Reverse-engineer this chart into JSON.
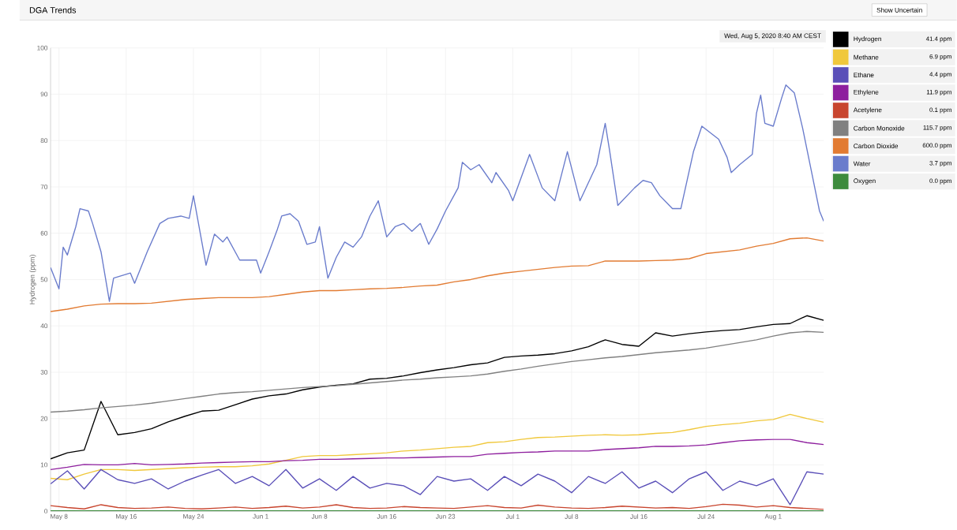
{
  "chart_data": {
    "type": "line",
    "title": "DGA Trends",
    "ylabel": "Hydrogen (ppm)",
    "x": [
      "2020-05-07",
      "2020-05-09",
      "2020-05-11",
      "2020-05-13",
      "2020-05-15",
      "2020-05-17",
      "2020-05-19",
      "2020-05-21",
      "2020-05-23",
      "2020-05-25",
      "2020-05-27",
      "2020-05-29",
      "2020-05-31",
      "2020-06-02",
      "2020-06-04",
      "2020-06-06",
      "2020-06-08",
      "2020-06-10",
      "2020-06-12",
      "2020-06-14",
      "2020-06-16",
      "2020-06-18",
      "2020-06-20",
      "2020-06-22",
      "2020-06-24",
      "2020-06-26",
      "2020-06-28",
      "2020-06-30",
      "2020-07-02",
      "2020-07-04",
      "2020-07-06",
      "2020-07-08",
      "2020-07-10",
      "2020-07-12",
      "2020-07-14",
      "2020-07-16",
      "2020-07-18",
      "2020-07-20",
      "2020-07-22",
      "2020-07-24",
      "2020-07-26",
      "2020-07-28",
      "2020-07-30",
      "2020-08-01",
      "2020-08-03",
      "2020-08-05",
      "2020-08-07"
    ],
    "xlim": [
      "2020-05-07",
      "2020-08-07"
    ],
    "xticks": [
      {
        "value": "2020-05-08",
        "label": "May 8"
      },
      {
        "value": "2020-05-16",
        "label": "May 16"
      },
      {
        "value": "2020-05-24",
        "label": "May 24"
      },
      {
        "value": "2020-06-01",
        "label": "Jun 1"
      },
      {
        "value": "2020-06-08",
        "label": "Jun 8"
      },
      {
        "value": "2020-06-16",
        "label": "Jun 16"
      },
      {
        "value": "2020-06-23",
        "label": "Jun 23"
      },
      {
        "value": "2020-07-01",
        "label": "Jul 1"
      },
      {
        "value": "2020-07-08",
        "label": "Jul 8"
      },
      {
        "value": "2020-07-16",
        "label": "Jul 16"
      },
      {
        "value": "2020-07-24",
        "label": "Jul 24"
      },
      {
        "value": "2020-08-01",
        "label": "Aug 1"
      }
    ],
    "ylim": [
      0,
      100
    ],
    "yticks": [
      0,
      10,
      20,
      30,
      40,
      50,
      60,
      70,
      80,
      90,
      100
    ],
    "grid": true,
    "legend": "top right",
    "marker": "none",
    "line_style": "solid",
    "annotations": [
      "Wed, Aug 5, 2020 8:40 AM CEST",
      "Show Uncertain",
      "41.4 ppm",
      "6.9 ppm",
      "4.4 ppm",
      "11.9 ppm",
      "0.1 ppm",
      "115.7 ppm",
      "600.0 ppm",
      "3.7 ppm",
      "0.0 ppm"
    ],
    "series": [
      {
        "name": "Hydrogen",
        "color": "#000000",
        "values": [
          11.3,
          12.6,
          13.2,
          23.7,
          16.5,
          17,
          17.8,
          19.3,
          20.5,
          21.6,
          21.8,
          23,
          24.2,
          24.9,
          25.3,
          26.2,
          26.8,
          27.2,
          27.5,
          28.5,
          28.7,
          29.2,
          29.9,
          30.5,
          31,
          31.6,
          32,
          33.2,
          33.5,
          33.7,
          34,
          34.6,
          35.5,
          37,
          36,
          35.6,
          38.5,
          37.8,
          38.3,
          38.7,
          39,
          39.2,
          39.8,
          40.3,
          40.5,
          42.2,
          41.2
        ]
      },
      {
        "name": "Methane",
        "color": "#f0c83c",
        "values": [
          7.1,
          6.8,
          8,
          9,
          9,
          8.8,
          9,
          9.2,
          9.4,
          9.5,
          9.6,
          9.6,
          9.8,
          10.2,
          11,
          11.8,
          12,
          12,
          12.2,
          12.4,
          12.6,
          13,
          13.2,
          13.5,
          13.8,
          14,
          14.8,
          15,
          15.5,
          15.9,
          16,
          16.2,
          16.4,
          16.5,
          16.4,
          16.5,
          16.8,
          17,
          17.6,
          18.3,
          18.7,
          19,
          19.5,
          19.8,
          20.9,
          20,
          19.2
        ]
      },
      {
        "name": "Ethane",
        "color": "#5a4fb8",
        "values": [
          5.9,
          8.7,
          4.8,
          9,
          6.8,
          6,
          7,
          4.8,
          6.5,
          7.8,
          9,
          6,
          7.5,
          5.5,
          9,
          5,
          7,
          4.5,
          7.5,
          5,
          6,
          5.5,
          3.6,
          7.5,
          6.5,
          7,
          4.5,
          7.5,
          5.5,
          8,
          6.5,
          4,
          7.5,
          6,
          8.5,
          5,
          6.5,
          4,
          7,
          8.5,
          4.5,
          6.5,
          5.5,
          7,
          1.4,
          8.5,
          8
        ]
      },
      {
        "name": "Ethylene",
        "color": "#8e1f9e",
        "values": [
          9,
          9.5,
          10.1,
          10,
          10,
          10.3,
          10,
          10.1,
          10.2,
          10.4,
          10.5,
          10.6,
          10.7,
          10.7,
          10.9,
          11,
          11.2,
          11.2,
          11.3,
          11.4,
          11.5,
          11.5,
          11.6,
          11.7,
          11.8,
          11.8,
          12.3,
          12.5,
          12.7,
          12.8,
          13,
          13,
          13,
          13.3,
          13.5,
          13.7,
          14,
          14,
          14.1,
          14.3,
          14.8,
          15.2,
          15.4,
          15.5,
          15.5,
          14.8,
          14.4
        ]
      },
      {
        "name": "Acetylene",
        "color": "#c8452e",
        "values": [
          1.2,
          0.8,
          0.5,
          1.4,
          0.8,
          0.6,
          0.7,
          0.9,
          0.6,
          0.5,
          0.7,
          0.9,
          0.6,
          0.8,
          1.1,
          0.7,
          0.9,
          1.4,
          0.8,
          0.6,
          0.7,
          1.0,
          0.8,
          0.7,
          0.6,
          0.9,
          1.2,
          0.8,
          0.7,
          1.3,
          0.9,
          0.7,
          0.6,
          0.8,
          1.1,
          0.9,
          0.7,
          0.8,
          0.6,
          1.0,
          1.5,
          1.3,
          0.9,
          1.2,
          0.8,
          0.6,
          0.4
        ]
      },
      {
        "name": "Carbon Monoxide",
        "color": "#808080",
        "values": [
          21.4,
          21.6,
          21.9,
          22.3,
          22.6,
          22.9,
          23.3,
          23.8,
          24.3,
          24.8,
          25.3,
          25.6,
          25.8,
          26.1,
          26.4,
          26.7,
          26.9,
          27.1,
          27.4,
          27.7,
          28,
          28.3,
          28.5,
          28.8,
          29,
          29.2,
          29.6,
          30.2,
          30.7,
          31.3,
          31.8,
          32.3,
          32.7,
          33.1,
          33.4,
          33.8,
          34.2,
          34.5,
          34.8,
          35.2,
          35.8,
          36.4,
          37,
          37.8,
          38.5,
          38.8,
          38.6
        ]
      },
      {
        "name": "Carbon Dioxide",
        "color": "#e27b32",
        "values": [
          43.1,
          43.6,
          44.3,
          44.7,
          44.8,
          44.8,
          44.9,
          45.3,
          45.7,
          45.9,
          46.1,
          46.1,
          46.1,
          46.3,
          46.8,
          47.3,
          47.6,
          47.6,
          47.8,
          48,
          48.1,
          48.3,
          48.6,
          48.8,
          49.5,
          50,
          50.8,
          51.4,
          51.8,
          52.2,
          52.6,
          52.9,
          53,
          54,
          54,
          54,
          54.1,
          54.2,
          54.5,
          55.6,
          56,
          56.4,
          57.2,
          57.8,
          58.8,
          59,
          58.3
        ]
      },
      {
        "name": "Water",
        "color": "#6a7ccc",
        "x": [
          "2020-05-07",
          "2020-05-08",
          "2020-05-08T12:00",
          "2020-05-09",
          "2020-05-10",
          "2020-05-10T12:00",
          "2020-05-11T12:00",
          "2020-05-12",
          "2020-05-13",
          "2020-05-14",
          "2020-05-14T12:00",
          "2020-05-16T12:00",
          "2020-05-17",
          "2020-05-18T12:00",
          "2020-05-20",
          "2020-05-21",
          "2020-05-22T12:00",
          "2020-05-23T12:00",
          "2020-05-24",
          "2020-05-25T12:00",
          "2020-05-26T12:00",
          "2020-05-27T12:00",
          "2020-05-28",
          "2020-05-29T12:00",
          "2020-05-31T12:00",
          "2020-06-01",
          "2020-06-02",
          "2020-06-03",
          "2020-06-03T12:00",
          "2020-06-04T12:00",
          "2020-06-05T12:00",
          "2020-06-06T12:00",
          "2020-06-07T12:00",
          "2020-06-08",
          "2020-06-09",
          "2020-06-10",
          "2020-06-11",
          "2020-06-12",
          "2020-06-13",
          "2020-06-14",
          "2020-06-15",
          "2020-06-16",
          "2020-06-17",
          "2020-06-18",
          "2020-06-19",
          "2020-06-20",
          "2020-06-21",
          "2020-06-22",
          "2020-06-23",
          "2020-06-24T12:00",
          "2020-06-25",
          "2020-06-26",
          "2020-06-27",
          "2020-06-28T12:00",
          "2020-06-29",
          "2020-06-30T12:00",
          "2020-07-01",
          "2020-07-03",
          "2020-07-04T12:00",
          "2020-07-06",
          "2020-07-07T12:00",
          "2020-07-09",
          "2020-07-11",
          "2020-07-12",
          "2020-07-12T12:00",
          "2020-07-13T12:00",
          "2020-07-15T12:00",
          "2020-07-16T12:00",
          "2020-07-17T12:00",
          "2020-07-18T12:00",
          "2020-07-20",
          "2020-07-21",
          "2020-07-22T12:00",
          "2020-07-23T12:00",
          "2020-07-25T12:00",
          "2020-07-26T12:00",
          "2020-07-27",
          "2020-07-28",
          "2020-07-29T12:00",
          "2020-07-30",
          "2020-07-30T12:00",
          "2020-07-31",
          "2020-08-01",
          "2020-08-02",
          "2020-08-02T12:00",
          "2020-08-03T12:00",
          "2020-08-04T12:00",
          "2020-08-05T12:00",
          "2020-08-06T12:00",
          "2020-08-07"
        ],
        "values": [
          52.6,
          48.0,
          57.0,
          55.3,
          61.4,
          65.3,
          64.8,
          62.1,
          56,
          45.3,
          50.3,
          51.4,
          49.2,
          56,
          62.1,
          63.2,
          63.7,
          63.2,
          68.1,
          53.1,
          59.8,
          58.1,
          59.2,
          54.2,
          54.2,
          51.4,
          56,
          60.9,
          63.7,
          64.2,
          62.6,
          57.6,
          58.1,
          61.4,
          50.3,
          54.8,
          58.1,
          57,
          59.2,
          63.7,
          67,
          59.2,
          61.4,
          62.1,
          60.4,
          62.1,
          57.6,
          60.9,
          64.8,
          69.8,
          75.3,
          73.7,
          74.8,
          70.9,
          73.1,
          69.2,
          67,
          77,
          69.8,
          67,
          77.6,
          67,
          74.8,
          83.7,
          78.1,
          66,
          69.8,
          71.4,
          70.9,
          68.1,
          65.3,
          65.3,
          77.6,
          83.1,
          80.3,
          76.4,
          73.1,
          74.8,
          77,
          85.9,
          89.8,
          83.7,
          83.1,
          89.2,
          92,
          90.3,
          82.6,
          73.7,
          64.8,
          62.6
        ]
      },
      {
        "name": "Oxygen",
        "color": "#3d8b3d",
        "values": [
          0.1,
          0.1,
          0.1,
          0.1,
          0.1,
          0.1,
          0.1,
          0.1,
          0.1,
          0.1,
          0.1,
          0.1,
          0.1,
          0.1,
          0.1,
          0.1,
          0.1,
          0.1,
          0.1,
          0.1,
          0.1,
          0.1,
          0.1,
          0.1,
          0.1,
          0.1,
          0.1,
          0.1,
          0.1,
          0.1,
          0.1,
          0.1,
          0.1,
          0.1,
          0.1,
          0.1,
          0.1,
          0.1,
          0.1,
          0.1,
          0.1,
          0.1,
          0.1,
          0.1,
          0.1,
          0.1,
          0.1
        ]
      }
    ]
  }
}
